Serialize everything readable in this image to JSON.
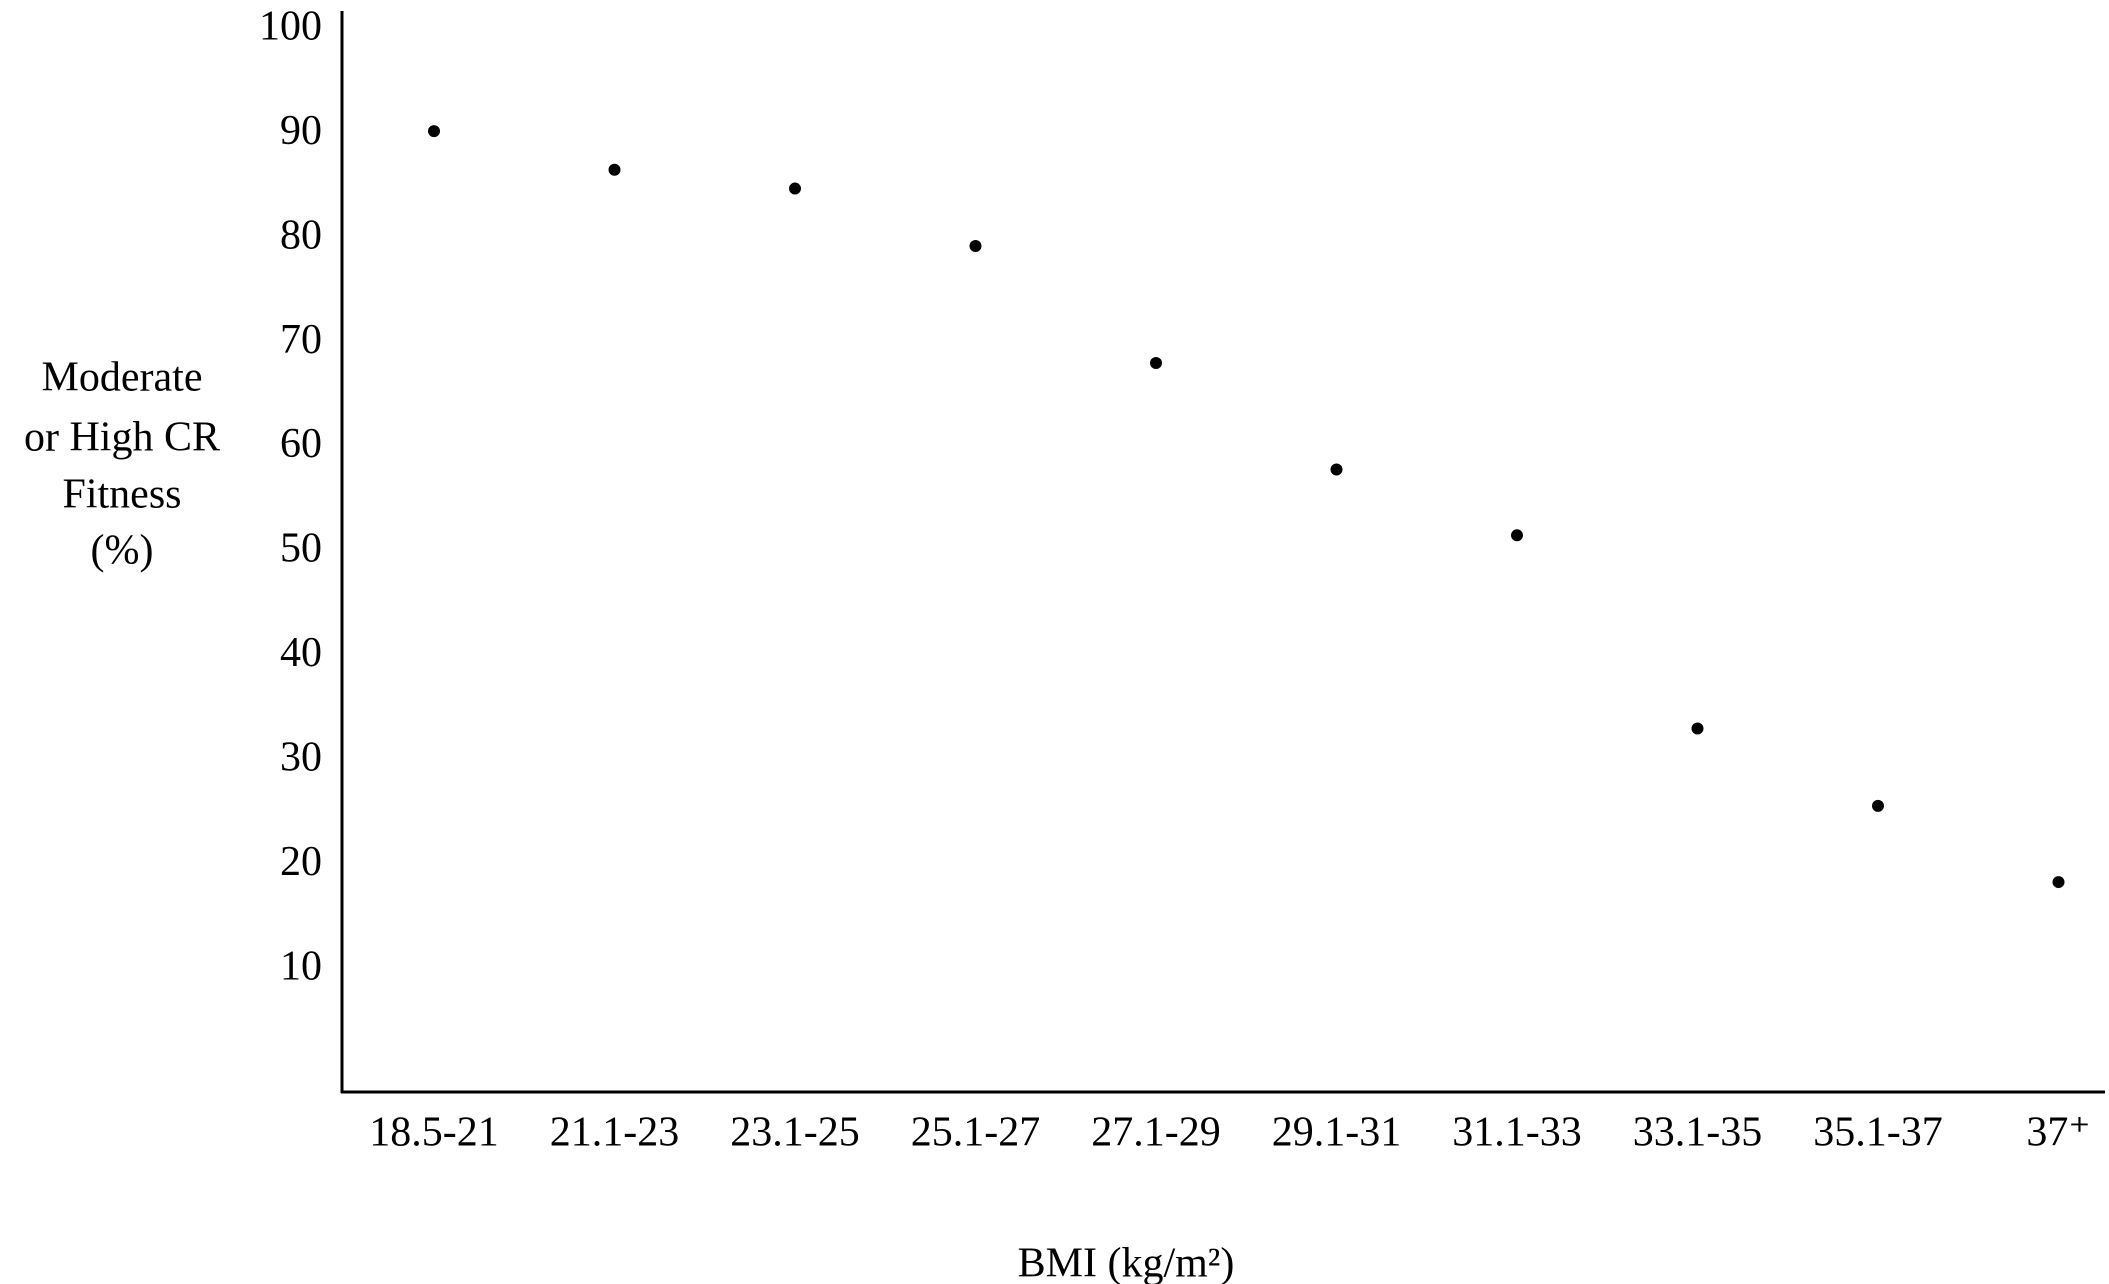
{
  "chart_data": {
    "type": "scatter",
    "ylabel": [
      "Moderate",
      "or High CR",
      "Fitness",
      "(%)"
    ],
    "xlabel": "BMI (kg/m²)",
    "categories": [
      "18.5-21",
      "21.1-23",
      "23.1-25",
      "25.1-27",
      "27.1-29",
      "29.1-31",
      "31.1-33",
      "33.1-35",
      "35.1-37",
      "37⁺"
    ],
    "values": [
      90.3,
      86.6,
      84.8,
      79.3,
      68.1,
      57.9,
      51.6,
      33.1,
      25.7,
      18.4
    ],
    "color": "#000000",
    "ylim": [
      -1.7,
      101.8
    ],
    "yticks": [
      10,
      20,
      30,
      40,
      50,
      60,
      70,
      80,
      90,
      100
    ],
    "grid": false
  }
}
